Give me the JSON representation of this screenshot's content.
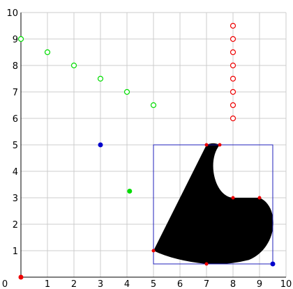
{
  "chart_data": {
    "type": "scatter",
    "xlim": [
      0,
      10
    ],
    "ylim": [
      0,
      10
    ],
    "xticks": [
      0,
      1,
      2,
      3,
      4,
      5,
      6,
      7,
      8,
      9,
      10
    ],
    "yticks": [
      0,
      1,
      2,
      3,
      4,
      5,
      6,
      7,
      8,
      9,
      10
    ],
    "x_tick_labels": [
      "0",
      "1",
      "2",
      "3",
      "4",
      "5",
      "6",
      "7",
      "8",
      "9",
      "10"
    ],
    "y_tick_labels": [
      "0",
      "1",
      "2",
      "3",
      "4",
      "5",
      "6",
      "7",
      "8",
      "9",
      "10"
    ],
    "grid": true,
    "colors": {
      "grid": "#cccccc",
      "axis": "#000000",
      "green": "#00dd00",
      "red": "#ee0000",
      "blue": "#0000cc",
      "rect": "#2222bb",
      "shape": "#000000"
    },
    "hollow_green_points": [
      {
        "x": 0,
        "y": 9
      },
      {
        "x": 1,
        "y": 8.5
      },
      {
        "x": 2,
        "y": 8
      },
      {
        "x": 3,
        "y": 7.5
      },
      {
        "x": 4,
        "y": 7
      },
      {
        "x": 5,
        "y": 6.5
      }
    ],
    "hollow_red_points": [
      {
        "x": 8,
        "y": 6
      },
      {
        "x": 8,
        "y": 6.5
      },
      {
        "x": 8,
        "y": 7
      },
      {
        "x": 8,
        "y": 7.5
      },
      {
        "x": 8,
        "y": 8
      },
      {
        "x": 8,
        "y": 8.5
      },
      {
        "x": 8,
        "y": 9
      },
      {
        "x": 8,
        "y": 9.5
      }
    ],
    "filled_points": [
      {
        "x": 3,
        "y": 5,
        "color": "blue"
      },
      {
        "x": 4.1,
        "y": 3.25,
        "color": "green"
      },
      {
        "x": 0,
        "y": 0,
        "color": "red"
      },
      {
        "x": 9.5,
        "y": 0.5,
        "color": "blue"
      }
    ],
    "bounding_box": {
      "x0": 5,
      "y0": 0.5,
      "x1": 9.5,
      "y1": 5
    },
    "shape_vertices": [
      {
        "x": 5,
        "y": 1
      },
      {
        "x": 7,
        "y": 0.5
      },
      {
        "x": 7,
        "y": 5
      },
      {
        "x": 7.5,
        "y": 5
      },
      {
        "x": 8,
        "y": 3
      },
      {
        "x": 9,
        "y": 3
      }
    ]
  }
}
